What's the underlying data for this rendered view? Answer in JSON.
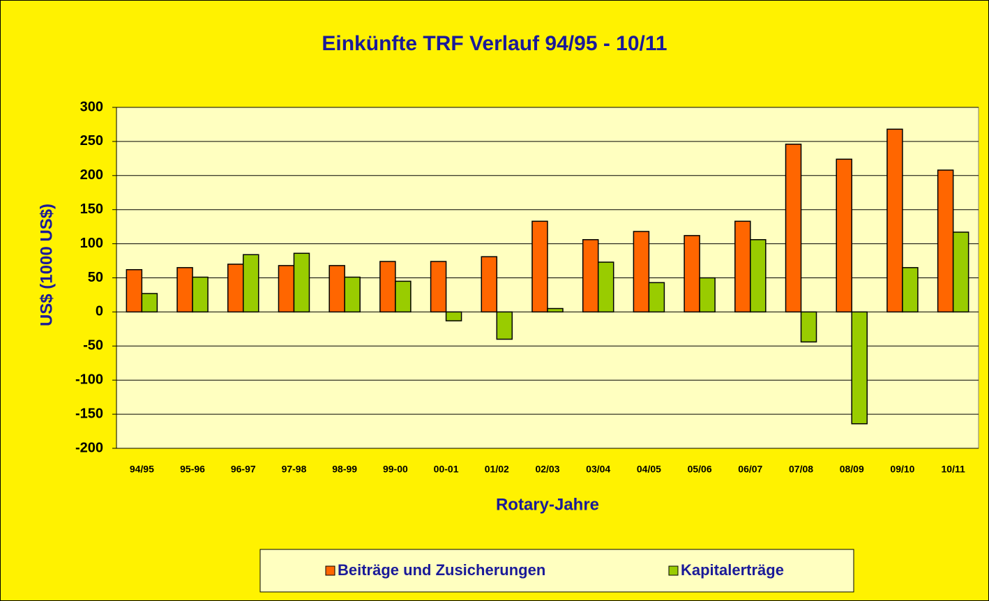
{
  "chart_data": {
    "type": "bar",
    "title": "Einkünfte TRF Verlauf  94/95 - 10/11",
    "x_label": "Rotary-Jahre",
    "y_label": "US$ (1000 US$)",
    "categories": [
      "94/95",
      "95-96",
      "96-97",
      "97-98",
      "98-99",
      "99-00",
      "00-01",
      "01/02",
      "02/03",
      "03/04",
      "04/05",
      "05/06",
      "06/07",
      "07/08",
      "08/09",
      "09/10",
      "10/11"
    ],
    "series": [
      {
        "name": "Beiträge und Zusicherungen",
        "color": "#ff6600",
        "values": [
          62,
          65,
          70,
          68,
          68,
          74,
          74,
          81,
          133,
          106,
          118,
          112,
          133,
          246,
          224,
          268,
          208
        ]
      },
      {
        "name": "Kapitalerträge",
        "color": "#99cc00",
        "values": [
          27,
          51,
          84,
          86,
          51,
          45,
          -13,
          -40,
          5,
          73,
          43,
          50,
          106,
          -44,
          -164,
          65,
          117
        ]
      }
    ],
    "ylim": [
      -200,
      300
    ],
    "yticks": [
      -200,
      -150,
      -100,
      -50,
      0,
      50,
      100,
      150,
      200,
      250,
      300
    ],
    "grid": true,
    "legend": "bottom"
  }
}
